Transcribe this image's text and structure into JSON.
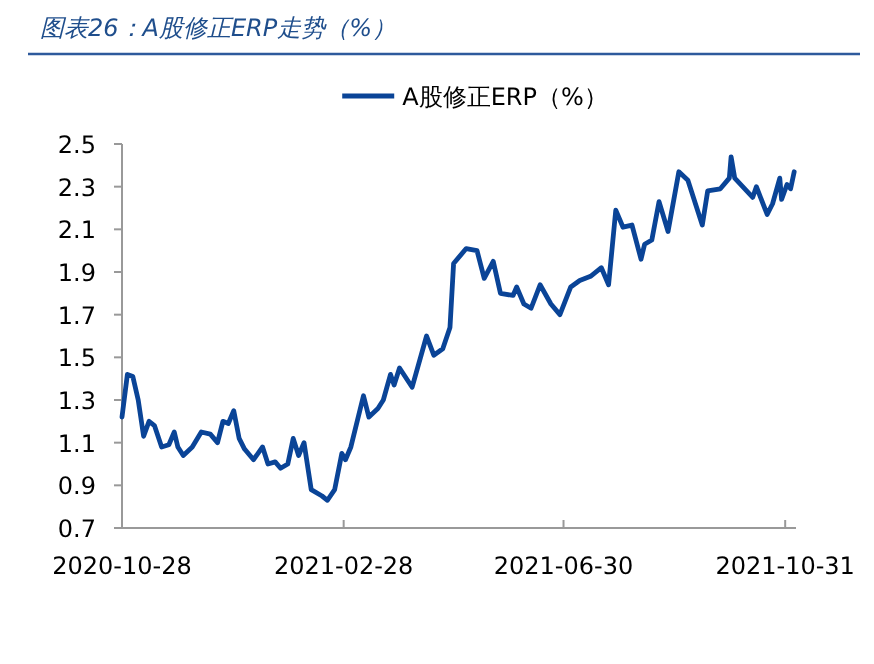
{
  "chart_data": {
    "type": "line",
    "title": "图表26：A股修正ERP走势（%）",
    "x": [
      "2020-10-28",
      "2020-10-31",
      "2020-11-03",
      "2020-11-06",
      "2020-11-09",
      "2020-11-12",
      "2020-11-15",
      "2020-11-19",
      "2020-11-23",
      "2020-11-26",
      "2020-11-28",
      "2020-12-01",
      "2020-12-06",
      "2020-12-11",
      "2020-12-16",
      "2020-12-20",
      "2020-12-23",
      "2020-12-26",
      "2020-12-29",
      "2021-01-01",
      "2021-01-04",
      "2021-01-09",
      "2021-01-14",
      "2021-01-17",
      "2021-01-21",
      "2021-01-24",
      "2021-01-28",
      "2021-01-31",
      "2021-02-03",
      "2021-02-06",
      "2021-02-10",
      "2021-02-16",
      "2021-02-19",
      "2021-02-23",
      "2021-02-27",
      "2021-03-01",
      "2021-03-04",
      "2021-03-11",
      "2021-03-14",
      "2021-03-19",
      "2021-03-22",
      "2021-03-26",
      "2021-03-28",
      "2021-03-31",
      "2021-04-07",
      "2021-04-15",
      "2021-04-19",
      "2021-04-24",
      "2021-04-28",
      "2021-04-30",
      "2021-05-07",
      "2021-05-13",
      "2021-05-17",
      "2021-05-22",
      "2021-05-26",
      "2021-06-02",
      "2021-06-04",
      "2021-06-08",
      "2021-06-12",
      "2021-06-17",
      "2021-06-23",
      "2021-06-28",
      "2021-07-04",
      "2021-07-09",
      "2021-07-15",
      "2021-07-21",
      "2021-07-25",
      "2021-07-29",
      "2021-08-02",
      "2021-08-07",
      "2021-08-12",
      "2021-08-14",
      "2021-08-18",
      "2021-08-22",
      "2021-08-27",
      "2021-09-02",
      "2021-09-07",
      "2021-09-15",
      "2021-09-18",
      "2021-09-25",
      "2021-09-30",
      "2021-10-01",
      "2021-10-03",
      "2021-10-13",
      "2021-10-15",
      "2021-10-21",
      "2021-10-24",
      "2021-10-28",
      "2021-10-29",
      "2021-11-01",
      "2021-11-03",
      "2021-11-05"
    ],
    "series": [
      {
        "name": "A股修正ERP（%）",
        "color": "#0a4497",
        "values": [
          1.22,
          1.42,
          1.41,
          1.3,
          1.13,
          1.2,
          1.18,
          1.08,
          1.09,
          1.15,
          1.08,
          1.04,
          1.08,
          1.15,
          1.14,
          1.1,
          1.2,
          1.19,
          1.25,
          1.12,
          1.07,
          1.02,
          1.08,
          1.0,
          1.01,
          0.98,
          1.0,
          1.12,
          1.04,
          1.1,
          0.88,
          0.85,
          0.83,
          0.88,
          1.05,
          1.02,
          1.08,
          1.32,
          1.22,
          1.26,
          1.3,
          1.42,
          1.37,
          1.45,
          1.36,
          1.6,
          1.51,
          1.54,
          1.64,
          1.94,
          2.01,
          2.0,
          1.87,
          1.95,
          1.8,
          1.79,
          1.83,
          1.75,
          1.73,
          1.84,
          1.75,
          1.7,
          1.83,
          1.86,
          1.88,
          1.92,
          1.84,
          2.19,
          2.11,
          2.12,
          1.96,
          2.03,
          2.05,
          2.23,
          2.09,
          2.37,
          2.33,
          2.12,
          2.28,
          2.29,
          2.34,
          2.44,
          2.34,
          2.25,
          2.3,
          2.17,
          2.22,
          2.34,
          2.24,
          2.31,
          2.29,
          2.37
        ]
      }
    ],
    "xlim": [
      "2020-10-28",
      "2021-11-06"
    ],
    "xticks": [
      "2020-10-28",
      "2021-02-28",
      "2021-06-30",
      "2021-10-31"
    ],
    "ylim": [
      0.7,
      2.5
    ],
    "yticks": [
      {
        "value": 0.7,
        "label": "0.7"
      },
      {
        "value": 0.9,
        "label": "0.9"
      },
      {
        "value": 1.1,
        "label": "1.1"
      },
      {
        "value": 1.3,
        "label": "1.3"
      },
      {
        "value": 1.5,
        "label": "1.5"
      },
      {
        "value": 1.7,
        "label": "1.7"
      },
      {
        "value": 1.9,
        "label": "1.9"
      },
      {
        "value": 2.1,
        "label": "2.1"
      },
      {
        "value": 2.3,
        "label": "2.3"
      },
      {
        "value": 2.5,
        "label": "2.5"
      }
    ],
    "legend": "top",
    "grid": false,
    "marker": "none",
    "line_style": "solid"
  }
}
